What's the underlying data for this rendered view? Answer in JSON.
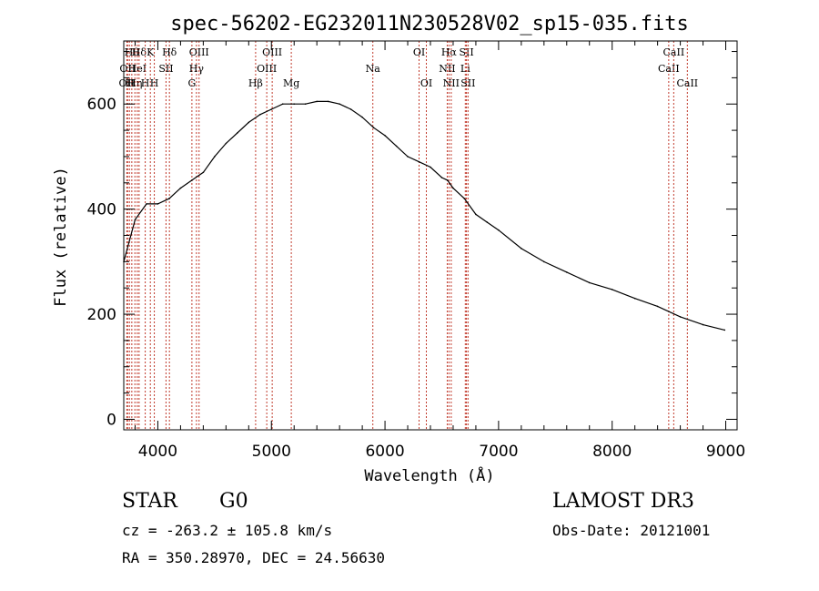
{
  "chart_data": {
    "type": "line",
    "title": "spec-56202-EG232011N230528V02_sp15-035.fits",
    "xlabel": "Wavelength (Å)",
    "ylabel": "Flux (relative)",
    "xlim": [
      3700,
      9100
    ],
    "ylim": [
      -20,
      720
    ],
    "grid": false,
    "x_ticks": [
      4000,
      5000,
      6000,
      7000,
      8000,
      9000
    ],
    "x_tick_labels": [
      "4000",
      "5000",
      "6000",
      "7000",
      "8000",
      "9000"
    ],
    "y_ticks": [
      0,
      200,
      400,
      600
    ],
    "y_tick_labels": [
      "0",
      "200",
      "400",
      "600"
    ],
    "series": [
      {
        "name": "flux",
        "color": "#000000",
        "x": [
          3700,
          3800,
          3900,
          4000,
          4100,
          4200,
          4300,
          4400,
          4500,
          4600,
          4700,
          4800,
          4900,
          5000,
          5100,
          5200,
          5300,
          5400,
          5500,
          5600,
          5700,
          5800,
          5900,
          6000,
          6100,
          6200,
          6300,
          6400,
          6500,
          6550,
          6600,
          6700,
          6800,
          6900,
          7000,
          7200,
          7400,
          7600,
          7800,
          8000,
          8200,
          8400,
          8600,
          8800,
          8990
        ],
        "y": [
          300,
          380,
          410,
          410,
          420,
          440,
          455,
          470,
          500,
          525,
          545,
          565,
          580,
          590,
          600,
          600,
          600,
          605,
          605,
          600,
          590,
          575,
          555,
          540,
          520,
          500,
          490,
          480,
          460,
          455,
          440,
          420,
          390,
          375,
          360,
          325,
          300,
          280,
          260,
          247,
          230,
          215,
          195,
          180,
          170
        ]
      }
    ],
    "lines": [
      {
        "wave": 3727,
        "row": 2,
        "label": "OII"
      },
      {
        "wave": 3734,
        "row": 1,
        "label": "OII"
      },
      {
        "wave": 3750,
        "row": 2,
        "label": "H"
      },
      {
        "wave": 3771,
        "row": 0,
        "label": "Hθ"
      },
      {
        "wave": 3798,
        "row": 2,
        "label": "Hη"
      },
      {
        "wave": 3819,
        "row": 1,
        "label": "HeI"
      },
      {
        "wave": 3835,
        "row": 0,
        "label": "Hδ"
      },
      {
        "wave": 3889,
        "row": 2,
        "label": "H"
      },
      {
        "wave": 3934,
        "row": 0,
        "label": "K"
      },
      {
        "wave": 3969,
        "row": 2,
        "label": "H"
      },
      {
        "wave": 4072,
        "row": 1,
        "label": "SII"
      },
      {
        "wave": 4102,
        "row": 0,
        "label": "Hδ"
      },
      {
        "wave": 4300,
        "row": 2,
        "label": "G"
      },
      {
        "wave": 4340,
        "row": 1,
        "label": "Hγ"
      },
      {
        "wave": 4363,
        "row": 0,
        "label": "OIII"
      },
      {
        "wave": 4861,
        "row": 2,
        "label": "Hβ"
      },
      {
        "wave": 4959,
        "row": 1,
        "label": "OIII"
      },
      {
        "wave": 5007,
        "row": 0,
        "label": "OIII"
      },
      {
        "wave": 5175,
        "row": 2,
        "label": "Mg"
      },
      {
        "wave": 5893,
        "row": 1,
        "label": "Na"
      },
      {
        "wave": 6300,
        "row": 0,
        "label": "OI"
      },
      {
        "wave": 6364,
        "row": 2,
        "label": "OI"
      },
      {
        "wave": 6548,
        "row": 1,
        "label": "NII"
      },
      {
        "wave": 6563,
        "row": 0,
        "label": "Hα"
      },
      {
        "wave": 6583,
        "row": 2,
        "label": "NII"
      },
      {
        "wave": 6707,
        "row": 1,
        "label": "Li"
      },
      {
        "wave": 6717,
        "row": 0,
        "label": "SII"
      },
      {
        "wave": 6731,
        "row": 2,
        "label": "SII"
      },
      {
        "wave": 8498,
        "row": 1,
        "label": "CaII"
      },
      {
        "wave": 8542,
        "row": 0,
        "label": "CaII"
      },
      {
        "wave": 8662,
        "row": 2,
        "label": "CaII"
      }
    ]
  },
  "info": {
    "object_class": "STAR",
    "subclass": "G0",
    "cz": "cz = -263.2 ± 105.8 km/s",
    "coords": "RA = 350.28970, DEC =  24.56630",
    "survey": "LAMOST DR3",
    "obs_date": "Obs-Date: 20121001"
  }
}
